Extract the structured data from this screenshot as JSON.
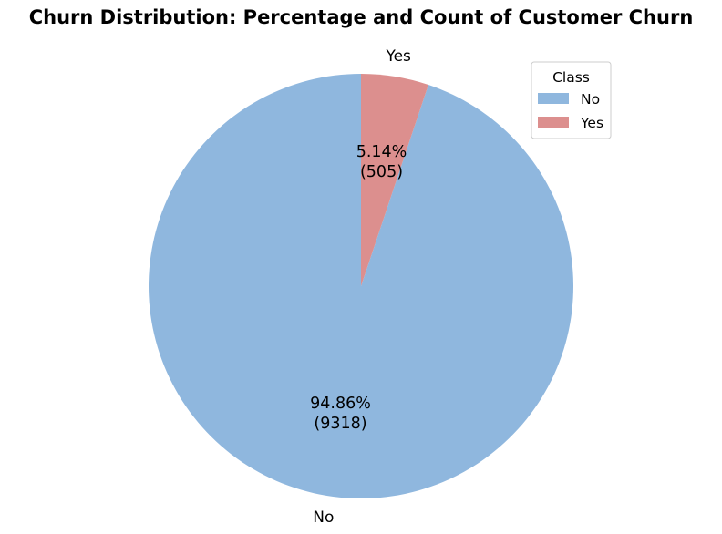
{
  "chart_data": {
    "type": "pie",
    "title": "Churn Distribution: Percentage and Count of Customer Churn",
    "start_angle_deg": 90,
    "direction": "clockwise-from-top-for-minor",
    "slices": [
      {
        "label": "No",
        "count": 9318,
        "percent": 94.86,
        "percent_text": "94.86%",
        "count_text": "(9318)",
        "color": "#8fb7de"
      },
      {
        "label": "Yes",
        "count": 505,
        "percent": 5.14,
        "percent_text": "5.14%",
        "count_text": "(505)",
        "color": "#dc8f8e"
      }
    ],
    "legend": {
      "title": "Class",
      "placement": "top-right",
      "entries": [
        "No",
        "Yes"
      ]
    }
  }
}
